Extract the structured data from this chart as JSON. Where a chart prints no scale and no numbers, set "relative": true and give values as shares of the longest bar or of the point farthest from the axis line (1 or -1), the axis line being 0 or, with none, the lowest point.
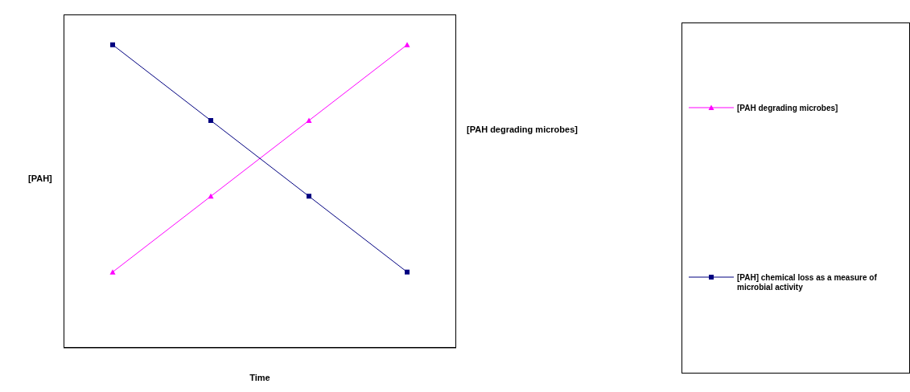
{
  "chart_data": {
    "type": "line",
    "relative": true,
    "xlabel": "Time",
    "ylabel": "[PAH]",
    "y2label": "[PAH degrading microbes]",
    "categories": [
      null,
      null,
      null,
      null
    ],
    "legend": "right",
    "series": [
      {
        "name": "[PAH degrading microbes]",
        "color": "#ff00ff",
        "marker": "triangle",
        "values": [
          0.25,
          0.5,
          0.75,
          1
        ]
      },
      {
        "name": "[PAH] chemical loss as a measure of microbial activity",
        "color": "#000080",
        "marker": "square",
        "values": [
          1,
          0.75,
          0.5,
          0.25
        ]
      }
    ]
  }
}
